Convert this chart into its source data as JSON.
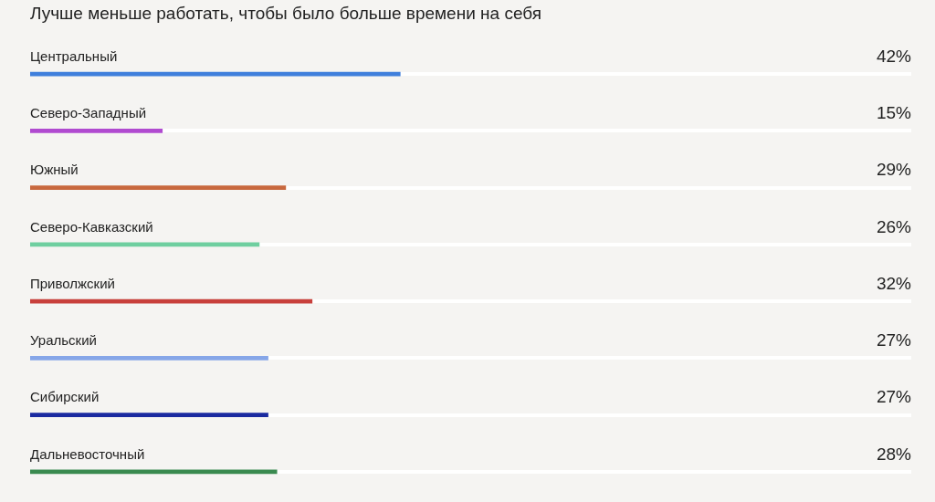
{
  "chart_data": {
    "type": "bar",
    "orientation": "horizontal",
    "title": "Лучше меньше работать, чтобы было больше времени на себя",
    "categories": [
      "Центральный",
      "Северо-Западный",
      "Южный",
      "Северо-Кавказский",
      "Приволжский",
      "Уральский",
      "Сибирский",
      "Дальневосточный"
    ],
    "values": [
      42,
      15,
      29,
      26,
      32,
      27,
      27,
      28
    ],
    "value_labels": [
      "42%",
      "15%",
      "29%",
      "26%",
      "32%",
      "27%",
      "27%",
      "28%"
    ],
    "colors": [
      "#3f7fdc",
      "#b04ad0",
      "#c8683e",
      "#6fcfa0",
      "#c8403c",
      "#86a6e8",
      "#1a2aa0",
      "#3a8a50"
    ],
    "xlim": [
      0,
      100
    ]
  }
}
